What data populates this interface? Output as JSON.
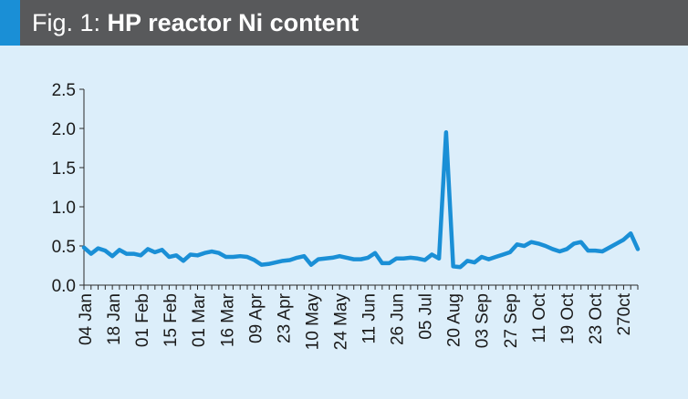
{
  "figure": {
    "fig_label": "Fig. 1:",
    "title": "HP reactor Ni content"
  },
  "colors": {
    "header_bg": "#58595b",
    "accent": "#1a8fd6",
    "plot_bg": "#dceefa",
    "line": "#1a8fd6"
  },
  "chart_data": {
    "type": "line",
    "title": "HP reactor Ni content",
    "xlabel": "",
    "ylabel": "",
    "ylim": [
      0,
      2.5
    ],
    "yticks": [
      "0.0",
      "0.5",
      "1.0",
      "1.5",
      "2.0",
      "2.5"
    ],
    "x_tick_labels": [
      "04 Jan",
      "18 Jan",
      "01 Feb",
      "15 Feb",
      "01 Mar",
      "16 Mar",
      "09 Apr",
      "23 Apr",
      "10 May",
      "24 May",
      "11 Jun",
      "26 Jun",
      "05 Jul",
      "20 Aug",
      "03 Sep",
      "27 Sep",
      "11 Oct",
      "19 Oct",
      "23 Oct",
      "270ct"
    ],
    "grid": false,
    "series": [
      {
        "values": [
          0.48,
          0.4,
          0.47,
          0.44,
          0.37,
          0.45,
          0.4,
          0.4,
          0.38,
          0.46,
          0.42,
          0.45,
          0.36,
          0.38,
          0.31,
          0.39,
          0.38,
          0.41,
          0.43,
          0.41,
          0.36,
          0.36,
          0.37,
          0.36,
          0.32,
          0.26,
          0.27,
          0.29,
          0.31,
          0.32,
          0.35,
          0.37,
          0.26,
          0.33,
          0.34,
          0.35,
          0.37,
          0.35,
          0.33,
          0.33,
          0.35,
          0.41,
          0.28,
          0.28,
          0.34,
          0.34,
          0.35,
          0.34,
          0.32,
          0.39,
          0.34,
          1.95,
          0.24,
          0.23,
          0.31,
          0.29,
          0.36,
          0.33,
          0.36,
          0.39,
          0.42,
          0.52,
          0.5,
          0.55,
          0.53,
          0.5,
          0.46,
          0.43,
          0.46,
          0.53,
          0.55,
          0.44,
          0.44,
          0.43,
          0.48,
          0.53,
          0.58,
          0.66,
          0.46
        ]
      }
    ]
  }
}
